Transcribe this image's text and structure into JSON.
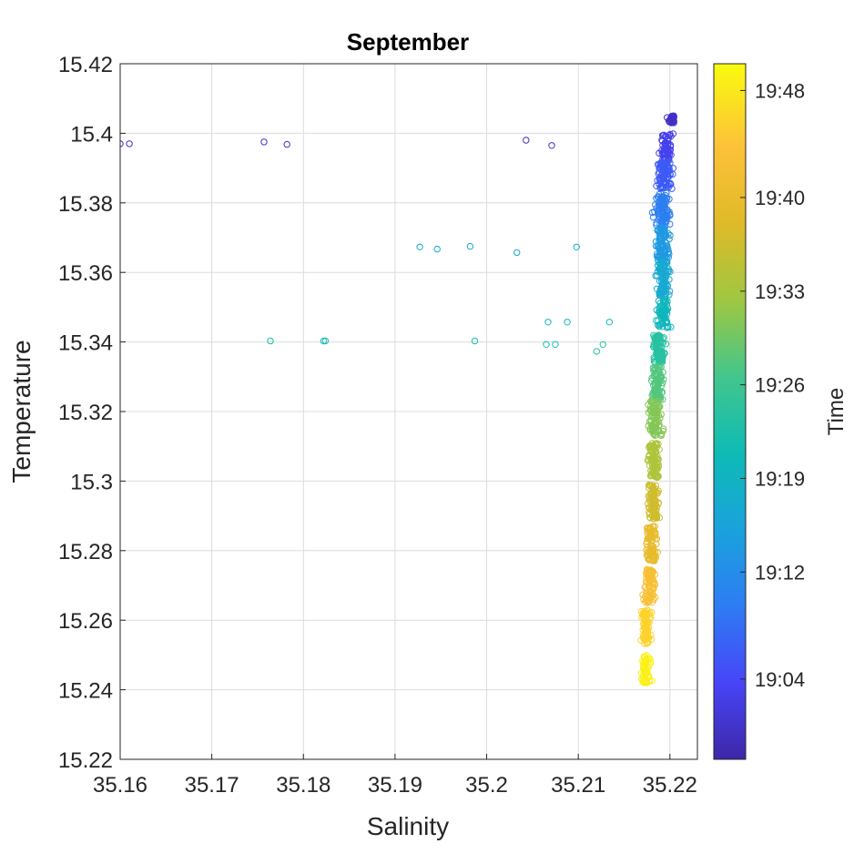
{
  "chart_data": {
    "type": "scatter",
    "title": "September",
    "xlabel": "Salinity",
    "ylabel": "Temperature",
    "xlim": [
      35.16,
      35.223
    ],
    "ylim": [
      15.22,
      15.42
    ],
    "xticks": [
      35.16,
      35.17,
      35.18,
      35.19,
      35.2,
      35.21,
      35.22
    ],
    "xtick_labels": [
      "35.16",
      "35.17",
      "35.18",
      "35.19",
      "35.2",
      "35.21",
      "35.22"
    ],
    "yticks": [
      15.22,
      15.24,
      15.26,
      15.28,
      15.3,
      15.32,
      15.34,
      15.36,
      15.38,
      15.4,
      15.42
    ],
    "ytick_labels": [
      "15.22",
      "15.24",
      "15.26",
      "15.28",
      "15.3",
      "15.32",
      "15.34",
      "15.36",
      "15.38",
      "15.4",
      "15.42"
    ],
    "grid": true,
    "marker": "open-circle",
    "colorbar": {
      "label": "Time",
      "colormap": "parula",
      "range": [
        "18:58",
        "19:50"
      ],
      "ticks": [
        "19:04",
        "19:12",
        "19:19",
        "19:26",
        "19:33",
        "19:40",
        "19:48"
      ],
      "colors": [
        "#3e26a8",
        "#4745f8",
        "#2e7cf3",
        "#1aa2dc",
        "#0ebbb5",
        "#42c68d",
        "#9fc741",
        "#dfba28",
        "#fdc139",
        "#f9fb0e"
      ]
    },
    "outlier_points": [
      {
        "x": 35.16,
        "y": 15.397,
        "time": "19:00"
      },
      {
        "x": 35.161,
        "y": 15.397,
        "time": "19:00"
      },
      {
        "x": 35.1757,
        "y": 15.3975,
        "time": "19:00"
      },
      {
        "x": 35.1782,
        "y": 15.3968,
        "time": "19:00"
      },
      {
        "x": 35.2043,
        "y": 15.398,
        "time": "19:00"
      },
      {
        "x": 35.2071,
        "y": 15.3965,
        "time": "19:00"
      },
      {
        "x": 35.1927,
        "y": 15.3673,
        "time": "19:18"
      },
      {
        "x": 35.1946,
        "y": 15.3667,
        "time": "19:18"
      },
      {
        "x": 35.1982,
        "y": 15.3675,
        "time": "19:18"
      },
      {
        "x": 35.2033,
        "y": 15.3657,
        "time": "19:18"
      },
      {
        "x": 35.2098,
        "y": 15.3673,
        "time": "19:18"
      },
      {
        "x": 35.1764,
        "y": 15.3403,
        "time": "19:22"
      },
      {
        "x": 35.1822,
        "y": 15.3403,
        "time": "19:22"
      },
      {
        "x": 35.1824,
        "y": 15.3403,
        "time": "19:22"
      },
      {
        "x": 35.1987,
        "y": 15.3403,
        "time": "19:22"
      },
      {
        "x": 35.2065,
        "y": 15.3393,
        "time": "19:22"
      },
      {
        "x": 35.2075,
        "y": 15.3393,
        "time": "19:22"
      },
      {
        "x": 35.2067,
        "y": 15.3457,
        "time": "19:20"
      },
      {
        "x": 35.2088,
        "y": 15.3457,
        "time": "19:20"
      },
      {
        "x": 35.212,
        "y": 15.3373,
        "time": "19:24"
      },
      {
        "x": 35.2127,
        "y": 15.3393,
        "time": "19:24"
      },
      {
        "x": 35.2134,
        "y": 15.3457,
        "time": "19:21"
      }
    ],
    "cluster": [
      {
        "y": 15.404,
        "x": 35.2202,
        "spread_x": 0.0007,
        "spread_y": 0.001,
        "time": "19:00",
        "n": 40
      },
      {
        "y": 15.396,
        "x": 35.2196,
        "spread_x": 0.0012,
        "spread_y": 0.004,
        "time": "19:03",
        "n": 70
      },
      {
        "y": 15.388,
        "x": 35.2194,
        "spread_x": 0.0014,
        "spread_y": 0.004,
        "time": "19:06",
        "n": 90
      },
      {
        "y": 15.378,
        "x": 35.2192,
        "spread_x": 0.0014,
        "spread_y": 0.005,
        "time": "19:10",
        "n": 100
      },
      {
        "y": 15.368,
        "x": 35.2192,
        "spread_x": 0.0014,
        "spread_y": 0.005,
        "time": "19:14",
        "n": 100
      },
      {
        "y": 15.358,
        "x": 35.2192,
        "spread_x": 0.0012,
        "spread_y": 0.005,
        "time": "19:17",
        "n": 90
      },
      {
        "y": 15.348,
        "x": 35.2192,
        "spread_x": 0.0012,
        "spread_y": 0.004,
        "time": "19:20",
        "n": 80
      },
      {
        "y": 15.338,
        "x": 35.2188,
        "spread_x": 0.0012,
        "spread_y": 0.004,
        "time": "19:24",
        "n": 90
      },
      {
        "y": 15.328,
        "x": 35.2186,
        "spread_x": 0.0011,
        "spread_y": 0.005,
        "time": "19:28",
        "n": 90
      },
      {
        "y": 15.318,
        "x": 35.2184,
        "spread_x": 0.0011,
        "spread_y": 0.005,
        "time": "19:31",
        "n": 90
      },
      {
        "y": 15.306,
        "x": 35.2183,
        "spread_x": 0.0011,
        "spread_y": 0.005,
        "time": "19:34",
        "n": 90
      },
      {
        "y": 15.294,
        "x": 35.2182,
        "spread_x": 0.0011,
        "spread_y": 0.005,
        "time": "19:37",
        "n": 90
      },
      {
        "y": 15.282,
        "x": 35.218,
        "spread_x": 0.0011,
        "spread_y": 0.005,
        "time": "19:40",
        "n": 90
      },
      {
        "y": 15.27,
        "x": 35.2178,
        "spread_x": 0.001,
        "spread_y": 0.005,
        "time": "19:43",
        "n": 90
      },
      {
        "y": 15.258,
        "x": 35.2174,
        "spread_x": 0.0009,
        "spread_y": 0.005,
        "time": "19:46",
        "n": 90
      },
      {
        "y": 15.246,
        "x": 35.2174,
        "spread_x": 0.0008,
        "spread_y": 0.004,
        "time": "19:49",
        "n": 60
      }
    ]
  }
}
